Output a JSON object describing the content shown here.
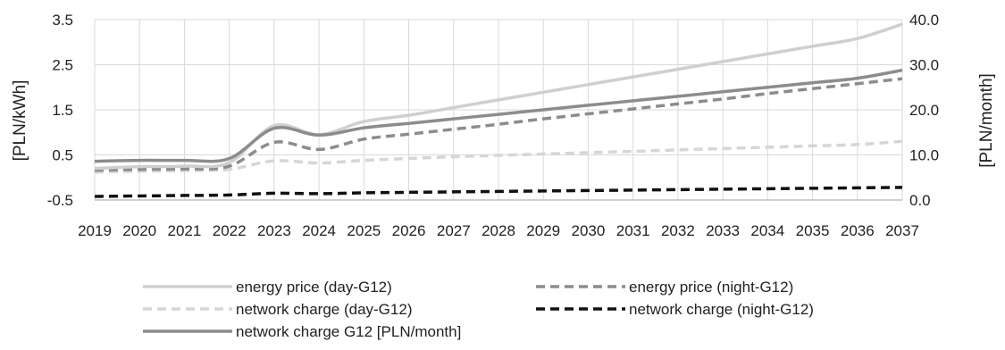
{
  "chart_data": {
    "type": "line",
    "title": "",
    "xlabel": "",
    "ylabel": "[PLN/kWh]",
    "y2label": "[PLN/month]",
    "categories": [
      "2019",
      "2020",
      "2021",
      "2022",
      "2023",
      "2024",
      "2025",
      "2026",
      "2027",
      "2028",
      "2029",
      "2030",
      "2031",
      "2032",
      "2033",
      "2034",
      "2035",
      "2036",
      "2037"
    ],
    "ylim": [
      -0.5,
      3.5
    ],
    "yticks": [
      "-0.5",
      "0.5",
      "1.5",
      "2.5",
      "3.5"
    ],
    "y2lim": [
      0,
      40
    ],
    "y2ticks": [
      "0.0",
      "10.0",
      "20.0",
      "30.0",
      "40.0"
    ],
    "grid": true,
    "legend_position": "bottom",
    "series": [
      {
        "name": "energy price (day-G12)",
        "axis": "left",
        "color": "#cfcfcf",
        "dash": "solid",
        "values": [
          0.2,
          0.24,
          0.25,
          0.33,
          1.15,
          0.95,
          1.24,
          1.38,
          1.55,
          1.72,
          1.89,
          2.06,
          2.23,
          2.4,
          2.57,
          2.74,
          2.91,
          3.08,
          3.4
        ]
      },
      {
        "name": "energy price (night-G12)",
        "axis": "left",
        "color": "#8c8c8c",
        "dash": "dashed",
        "values": [
          0.16,
          0.18,
          0.19,
          0.25,
          0.78,
          0.62,
          0.85,
          0.96,
          1.07,
          1.18,
          1.3,
          1.41,
          1.52,
          1.63,
          1.74,
          1.86,
          1.97,
          2.08,
          2.19
        ]
      },
      {
        "name": "network charge (day-G12)",
        "axis": "left",
        "color": "#d6d6d6",
        "dash": "dashed",
        "values": [
          0.12,
          0.14,
          0.15,
          0.18,
          0.37,
          0.32,
          0.38,
          0.42,
          0.46,
          0.49,
          0.52,
          0.55,
          0.58,
          0.61,
          0.64,
          0.67,
          0.7,
          0.73,
          0.8
        ]
      },
      {
        "name": "network charge (night-G12)",
        "axis": "left",
        "color": "#111111",
        "dash": "dashed",
        "values": [
          -0.42,
          -0.41,
          -0.4,
          -0.39,
          -0.35,
          -0.36,
          -0.34,
          -0.33,
          -0.32,
          -0.31,
          -0.3,
          -0.29,
          -0.28,
          -0.27,
          -0.26,
          -0.25,
          -0.24,
          -0.23,
          -0.22
        ]
      },
      {
        "name": "network charge G12 [PLN/month]",
        "axis": "right",
        "color": "#8c8c8c",
        "dash": "solid",
        "values": [
          8.6,
          8.8,
          8.8,
          9.2,
          15.9,
          14.4,
          16.0,
          17.0,
          18.0,
          19.0,
          20.0,
          21.0,
          22.0,
          23.0,
          24.0,
          25.0,
          26.0,
          27.0,
          28.8
        ]
      }
    ]
  }
}
